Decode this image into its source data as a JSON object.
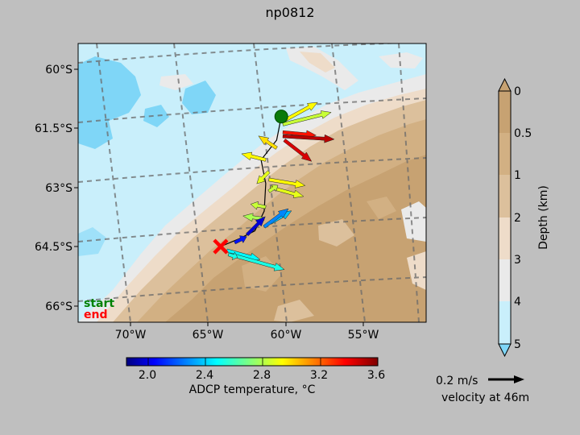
{
  "title": "np0812",
  "map": {
    "lat_ticks": [
      "60°S",
      "61.5°S",
      "63°S",
      "64.5°S",
      "66°S"
    ],
    "lon_ticks": [
      "70°W",
      "65°W",
      "60°W",
      "55°W"
    ],
    "legend": {
      "start_label": "start",
      "end_label": "end",
      "start_color": "#008000",
      "end_color": "#ff0000"
    },
    "start_marker": {
      "lon": -60.3,
      "lat": -61.2,
      "color": "#0a7a0a"
    },
    "end_marker": {
      "lon": -64.2,
      "lat": -64.5,
      "color": "#ff0000",
      "symbol": "x"
    },
    "track": [
      {
        "lon": -60.3,
        "lat": -61.2
      },
      {
        "lon": -60.6,
        "lat": -61.8
      },
      {
        "lon": -61.6,
        "lat": -62.3
      },
      {
        "lon": -61.3,
        "lat": -62.9
      },
      {
        "lon": -61.4,
        "lat": -63.6
      },
      {
        "lon": -62.0,
        "lat": -64.1
      },
      {
        "lon": -63.0,
        "lat": -64.3
      },
      {
        "lon": -64.2,
        "lat": -64.5
      }
    ],
    "vectors": [
      {
        "lon": -60.1,
        "lat": -61.3,
        "u": 0.55,
        "v": 0.3,
        "temp": 3.0
      },
      {
        "lon": -60.2,
        "lat": -61.4,
        "u": 0.8,
        "v": 0.2,
        "temp": 2.9
      },
      {
        "lon": -60.2,
        "lat": -61.6,
        "u": 0.55,
        "v": -0.05,
        "temp": 3.4
      },
      {
        "lon": -60.1,
        "lat": -61.8,
        "u": 0.45,
        "v": -0.35,
        "temp": 3.5
      },
      {
        "lon": -60.2,
        "lat": -61.7,
        "u": 0.85,
        "v": -0.05,
        "temp": 3.55
      },
      {
        "lon": -60.6,
        "lat": -62.0,
        "u": -0.3,
        "v": 0.2,
        "temp": 3.05
      },
      {
        "lon": -61.3,
        "lat": -62.3,
        "u": -0.4,
        "v": 0.1,
        "temp": 3.0
      },
      {
        "lon": -61.1,
        "lat": -62.6,
        "u": -0.2,
        "v": -0.2,
        "temp": 2.95
      },
      {
        "lon": -61.1,
        "lat": -62.8,
        "u": 0.6,
        "v": -0.1,
        "temp": 3.0
      },
      {
        "lon": -61.0,
        "lat": -63.0,
        "u": 0.55,
        "v": -0.15,
        "temp": 2.95
      },
      {
        "lon": -61.1,
        "lat": -63.1,
        "u": 0.15,
        "v": 0.1,
        "temp": 2.9
      },
      {
        "lon": -61.3,
        "lat": -63.5,
        "u": -0.25,
        "v": 0.05,
        "temp": 2.9
      },
      {
        "lon": -61.4,
        "lat": -63.8,
        "u": -0.35,
        "v": 0.05,
        "temp": 2.85
      },
      {
        "lon": -61.0,
        "lat": -63.9,
        "u": 0.35,
        "v": 0.2,
        "temp": 2.45
      },
      {
        "lon": -61.4,
        "lat": -64.0,
        "u": 0.4,
        "v": 0.3,
        "temp": 2.35
      },
      {
        "lon": -62.5,
        "lat": -64.2,
        "u": 0.3,
        "v": 0.3,
        "temp": 2.05
      },
      {
        "lon": -63.3,
        "lat": -64.4,
        "u": 0.2,
        "v": 0.1,
        "temp": 2.15
      },
      {
        "lon": -63.8,
        "lat": -64.6,
        "u": 0.55,
        "v": -0.15,
        "temp": 2.55
      },
      {
        "lon": -63.6,
        "lat": -64.7,
        "u": 0.9,
        "v": -0.25,
        "temp": 2.6
      },
      {
        "lon": -63.7,
        "lat": -64.7,
        "u": 0.15,
        "v": -0.05,
        "temp": 2.6
      }
    ]
  },
  "temperature_colorbar": {
    "label": "ADCP temperature, °C",
    "ticks": [
      "2.0",
      "2.4",
      "2.8",
      "3.2",
      "3.6"
    ],
    "range": [
      1.9,
      3.65
    ],
    "colormap": "jet"
  },
  "depth_colorbar": {
    "label": "Depth (km)",
    "ticks": [
      "0",
      "0.5",
      "1",
      "2",
      "3",
      "4",
      "5"
    ],
    "colors": [
      "#c7a272",
      "#d2b083",
      "#dcc09c",
      "#eedcc9",
      "#eaeaea",
      "#c9effb",
      "#7fd6f7"
    ]
  },
  "velocity_key": {
    "value_label": "0.2 m/s",
    "depth_label": "velocity at 46m"
  }
}
